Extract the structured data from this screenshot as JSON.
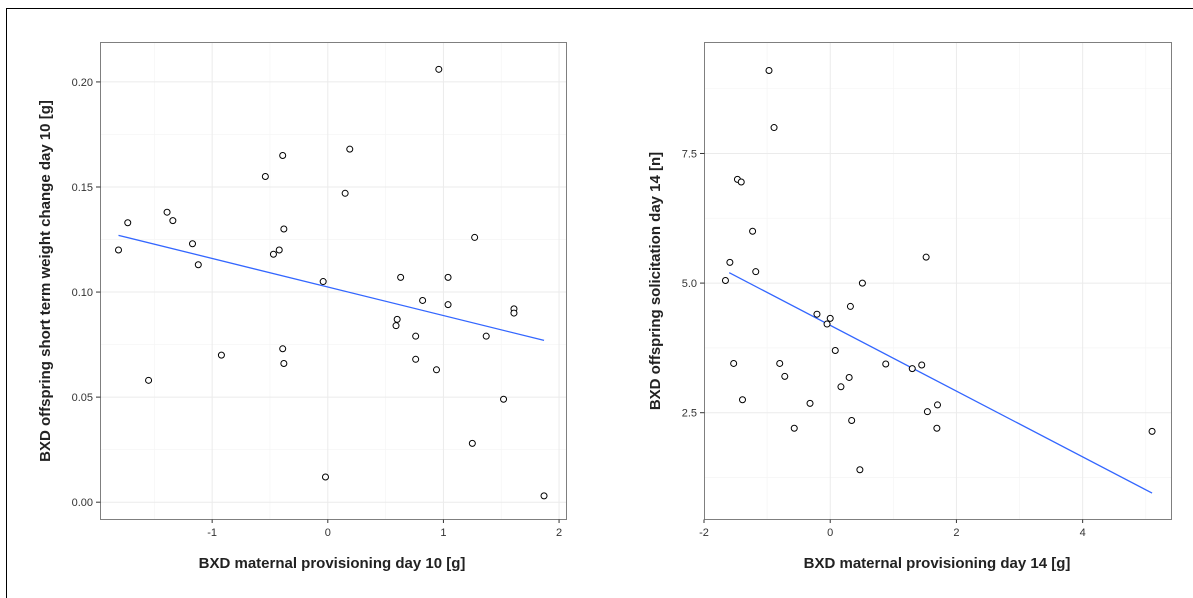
{
  "chart_data": [
    {
      "type": "scatter",
      "title": "",
      "xlabel": "BXD maternal provisioning day 10 [g]",
      "ylabel": "BXD offspring short term weight change day 10 [g]",
      "xlim": [
        -1.97,
        2.06
      ],
      "ylim": [
        -0.008,
        0.219
      ],
      "xticks": [
        -1,
        0,
        1,
        2
      ],
      "xtick_labels": [
        "-1",
        "0",
        "1",
        "2"
      ],
      "yticks": [
        0.0,
        0.05,
        0.1,
        0.15,
        0.2
      ],
      "ytick_labels": [
        "0.00",
        "0.05",
        "0.10",
        "0.15",
        "0.20"
      ],
      "grid": true,
      "points": [
        {
          "x": -1.81,
          "y": 0.12
        },
        {
          "x": -1.73,
          "y": 0.133
        },
        {
          "x": -1.55,
          "y": 0.058
        },
        {
          "x": -1.39,
          "y": 0.138
        },
        {
          "x": -1.34,
          "y": 0.134
        },
        {
          "x": -1.17,
          "y": 0.123
        },
        {
          "x": -1.12,
          "y": 0.113
        },
        {
          "x": -0.92,
          "y": 0.07
        },
        {
          "x": -0.54,
          "y": 0.155
        },
        {
          "x": -0.47,
          "y": 0.118
        },
        {
          "x": -0.42,
          "y": 0.12
        },
        {
          "x": -0.39,
          "y": 0.165
        },
        {
          "x": -0.38,
          "y": 0.13
        },
        {
          "x": -0.39,
          "y": 0.073
        },
        {
          "x": -0.38,
          "y": 0.066
        },
        {
          "x": -0.04,
          "y": 0.105
        },
        {
          "x": -0.02,
          "y": 0.012
        },
        {
          "x": 0.15,
          "y": 0.147
        },
        {
          "x": 0.19,
          "y": 0.168
        },
        {
          "x": 0.6,
          "y": 0.087
        },
        {
          "x": 0.59,
          "y": 0.084
        },
        {
          "x": 0.63,
          "y": 0.107
        },
        {
          "x": 0.76,
          "y": 0.079
        },
        {
          "x": 0.76,
          "y": 0.068
        },
        {
          "x": 0.82,
          "y": 0.096
        },
        {
          "x": 0.94,
          "y": 0.063
        },
        {
          "x": 0.96,
          "y": 0.206
        },
        {
          "x": 1.04,
          "y": 0.107
        },
        {
          "x": 1.04,
          "y": 0.094
        },
        {
          "x": 1.25,
          "y": 0.028
        },
        {
          "x": 1.27,
          "y": 0.126
        },
        {
          "x": 1.37,
          "y": 0.079
        },
        {
          "x": 1.52,
          "y": 0.049
        },
        {
          "x": 1.61,
          "y": 0.092
        },
        {
          "x": 1.61,
          "y": 0.09
        },
        {
          "x": 1.87,
          "y": 0.003
        }
      ],
      "trend_line": {
        "x": [
          -1.81,
          1.87
        ],
        "y": [
          0.127,
          0.077
        ],
        "color": "#3366ff"
      }
    },
    {
      "type": "scatter",
      "title": "",
      "xlabel": "BXD maternal provisioning day 14 [g]",
      "ylabel": "BXD offspring solicitation day 14 [n]",
      "xlim": [
        -2.0,
        5.4
      ],
      "ylim": [
        0.45,
        9.65
      ],
      "xticks": [
        -2,
        0,
        2,
        4
      ],
      "xtick_labels": [
        "-2",
        "0",
        "2",
        "4"
      ],
      "yticks": [
        2.5,
        5.0,
        7.5
      ],
      "ytick_labels": [
        "2.5",
        "5.0",
        "7.5"
      ],
      "grid": true,
      "points": [
        {
          "x": -1.66,
          "y": 5.05
        },
        {
          "x": -1.59,
          "y": 5.4
        },
        {
          "x": -1.53,
          "y": 3.45
        },
        {
          "x": -1.47,
          "y": 7.0
        },
        {
          "x": -1.41,
          "y": 6.95
        },
        {
          "x": -1.39,
          "y": 2.75
        },
        {
          "x": -1.23,
          "y": 6.0
        },
        {
          "x": -1.18,
          "y": 5.22
        },
        {
          "x": -0.97,
          "y": 9.1
        },
        {
          "x": -0.89,
          "y": 8.0
        },
        {
          "x": -0.8,
          "y": 3.45
        },
        {
          "x": -0.72,
          "y": 3.2
        },
        {
          "x": -0.57,
          "y": 2.2
        },
        {
          "x": -0.32,
          "y": 2.68
        },
        {
          "x": -0.21,
          "y": 4.4
        },
        {
          "x": -0.05,
          "y": 4.21
        },
        {
          "x": 0.0,
          "y": 4.32
        },
        {
          "x": 0.08,
          "y": 3.7
        },
        {
          "x": 0.17,
          "y": 3.0
        },
        {
          "x": 0.3,
          "y": 3.18
        },
        {
          "x": 0.32,
          "y": 4.55
        },
        {
          "x": 0.34,
          "y": 2.35
        },
        {
          "x": 0.47,
          "y": 1.4
        },
        {
          "x": 0.51,
          "y": 5.0
        },
        {
          "x": 0.88,
          "y": 3.44
        },
        {
          "x": 1.3,
          "y": 3.35
        },
        {
          "x": 1.45,
          "y": 3.42
        },
        {
          "x": 1.52,
          "y": 5.5
        },
        {
          "x": 1.54,
          "y": 2.52
        },
        {
          "x": 1.7,
          "y": 2.65
        },
        {
          "x": 1.69,
          "y": 2.2
        },
        {
          "x": 5.1,
          "y": 2.14
        }
      ],
      "trend_line": {
        "x": [
          -1.6,
          5.1
        ],
        "y": [
          5.2,
          0.95
        ],
        "color": "#3366ff"
      }
    }
  ]
}
